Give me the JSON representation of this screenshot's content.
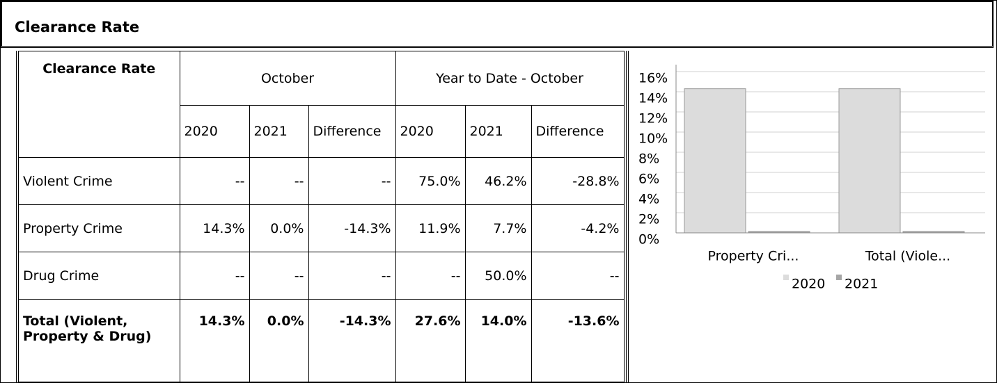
{
  "title": "Clearance Rate",
  "table": {
    "corner": "Clearance Rate",
    "groups": [
      "October",
      "Year to Date - October"
    ],
    "columns": [
      "2020",
      "2021",
      "Difference",
      "2020",
      "2021",
      "Difference"
    ],
    "rows": [
      {
        "label": "Violent Crime",
        "cells": [
          "--",
          "--",
          "--",
          "75.0%",
          "46.2%",
          "-28.8%"
        ]
      },
      {
        "label": "Property Crime",
        "cells": [
          "14.3%",
          "0.0%",
          "-14.3%",
          "11.9%",
          "7.7%",
          "-4.2%"
        ]
      },
      {
        "label": "Drug Crime",
        "cells": [
          "--",
          "--",
          "--",
          "--",
          "50.0%",
          "--"
        ]
      },
      {
        "label": "Total (Violent, Property & Drug)",
        "cells": [
          "14.3%",
          "0.0%",
          "-14.3%",
          "27.6%",
          "14.0%",
          "-13.6%"
        ]
      }
    ]
  },
  "chart_data": {
    "type": "bar",
    "categories": [
      "Property Cri...",
      "Total (Viole..."
    ],
    "series": [
      {
        "name": "2020",
        "color": "#dcdcdc",
        "values": [
          14.3,
          14.3
        ]
      },
      {
        "name": "2021",
        "color": "#a6a6a6",
        "values": [
          0,
          0
        ]
      }
    ],
    "ylim": [
      0,
      16
    ],
    "yticks": [
      {
        "value": 0,
        "label": "0%"
      },
      {
        "value": 2,
        "label": "2%"
      },
      {
        "value": 4,
        "label": "4%"
      },
      {
        "value": 6,
        "label": "6%"
      },
      {
        "value": 8,
        "label": "8%"
      },
      {
        "value": 10,
        "label": "10%"
      },
      {
        "value": 12,
        "label": "12%"
      },
      {
        "value": 14,
        "label": "14%"
      },
      {
        "value": 16,
        "label": "16%"
      }
    ],
    "grid": true,
    "legend": "bottom"
  }
}
